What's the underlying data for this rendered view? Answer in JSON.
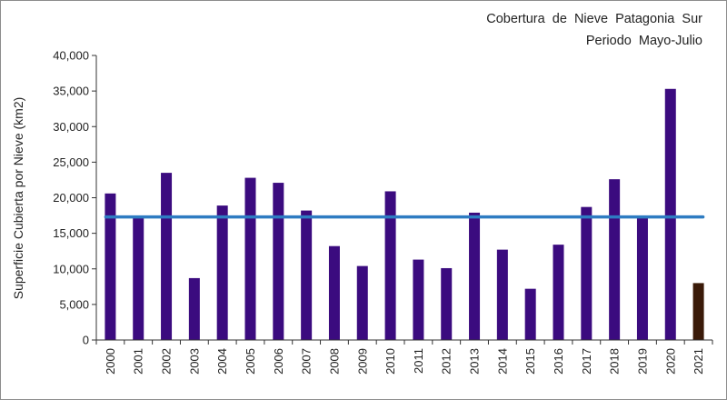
{
  "chart_data": {
    "type": "bar",
    "title": "Cobertura  de  Nieve  Patagonia  Sur",
    "subtitle": "Periodo  Mayo-Julio",
    "xlabel": "",
    "ylabel": "Superficie Cubierta por Nieve (km2)",
    "ylim": [
      0,
      40000
    ],
    "yticks": [
      0,
      5000,
      10000,
      15000,
      20000,
      25000,
      30000,
      35000,
      40000
    ],
    "ytick_labels": [
      "0",
      "5,000",
      "10,000",
      "15,000",
      "20,000",
      "25,000",
      "30,000",
      "35,000",
      "40,000"
    ],
    "categories": [
      "2000",
      "2001",
      "2002",
      "2003",
      "2004",
      "2005",
      "2006",
      "2007",
      "2008",
      "2009",
      "2010",
      "2011",
      "2012",
      "2013",
      "2014",
      "2015",
      "2016",
      "2017",
      "2018",
      "2019",
      "2020",
      "2021"
    ],
    "values": [
      20600,
      17200,
      23500,
      8700,
      18900,
      22800,
      22100,
      18200,
      13200,
      10400,
      20900,
      11300,
      10100,
      17900,
      12700,
      7200,
      13400,
      18700,
      22600,
      17300,
      35300,
      8000
    ],
    "bar_colors": [
      "#3b0b7f",
      "#3b0b7f",
      "#3b0b7f",
      "#3b0b7f",
      "#3b0b7f",
      "#3b0b7f",
      "#3b0b7f",
      "#3b0b7f",
      "#3b0b7f",
      "#3b0b7f",
      "#3b0b7f",
      "#3b0b7f",
      "#3b0b7f",
      "#3b0b7f",
      "#3b0b7f",
      "#3b0b7f",
      "#3b0b7f",
      "#3b0b7f",
      "#3b0b7f",
      "#3b0b7f",
      "#3b0b7f",
      "#3a1a08"
    ],
    "average_line": {
      "value": 17300,
      "color": "#2e7cc2"
    },
    "grid": false,
    "legend": "none"
  }
}
